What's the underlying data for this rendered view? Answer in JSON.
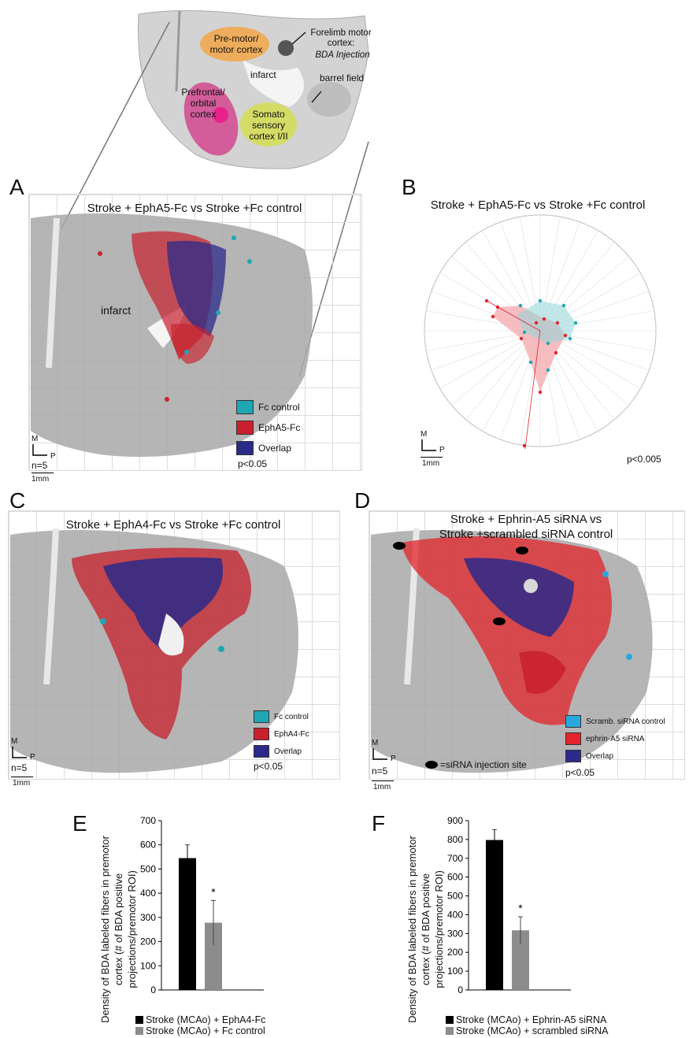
{
  "top_diagram": {
    "regions": {
      "premotor": "Pre-motor/ motor cortex",
      "forelimb": "Forelimb motor cortex:",
      "forelimb_injection": "BDA Injection",
      "infarct": "infarct",
      "barrel": "barrel field",
      "prefrontal": "Prefrontal/ orbital cortex",
      "somato": "Somato sensory cortex I/II"
    }
  },
  "panel_a": {
    "letter": "A",
    "title": "Stroke + EphA5-Fc vs Stroke +Fc control",
    "infarct_label": "infarct",
    "legend": [
      "Fc control",
      "EphA5-Fc",
      "Overlap"
    ],
    "pvalue": "p<0.05",
    "scale": {
      "m": "M",
      "p": "P",
      "n": "n=5",
      "bar": "1mm"
    }
  },
  "panel_b": {
    "letter": "B",
    "title": "Stroke + EphA5-Fc vs Stroke +Fc control",
    "pvalue": "p<0.005",
    "scale": {
      "m": "M",
      "p": "P",
      "bar": "1mm"
    }
  },
  "panel_c": {
    "letter": "C",
    "title": "Stroke + EphA4-Fc vs Stroke +Fc control",
    "legend": [
      "Fc control",
      "EphA4-Fc",
      "Overlap"
    ],
    "pvalue": "p<0.05",
    "scale": {
      "m": "M",
      "p": "P",
      "n": "n=5",
      "bar": "1mm"
    }
  },
  "panel_d": {
    "letter": "D",
    "title_line1": "Stroke + Ephrin-A5 siRNA vs",
    "title_line2": "Stroke +scrambled siRNA control",
    "legend": [
      "Scramb. siRNA control",
      "ephrin-A5 siRNA",
      "Overlap"
    ],
    "injection_label": "=siRNA injection site",
    "pvalue": "p<0.05",
    "scale": {
      "m": "M",
      "p": "P",
      "n": "n=5",
      "bar": "1mm"
    }
  },
  "colors": {
    "fc_control": "#1fa6b4",
    "ephrin_red": "#c8202c",
    "overlap": "#2b2a8a",
    "scramb": "#29a8e0",
    "sirna_red": "#e3242b",
    "bar_dark": "#000000",
    "bar_gray": "#8c8c8c"
  },
  "chart_data": [
    {
      "type": "bar",
      "letter": "E",
      "categories": [
        "Stroke (MCAo) + EphA4-Fc",
        "Stroke (MCAo) + Fc control"
      ],
      "values": [
        545,
        278
      ],
      "errors": [
        55,
        92
      ],
      "ylabel": "Density of BDA labeled fibers in premotor cortex (# of BDA positive projections/premotor ROI)",
      "ylim": [
        0,
        700
      ],
      "yticks": [
        "0",
        "100",
        "200",
        "300",
        "400",
        "500",
        "600",
        "700"
      ],
      "significance": "*"
    },
    {
      "type": "bar",
      "letter": "F",
      "categories": [
        "Stroke (MCAo) + Ephrin-A5 siRNA",
        "Stroke (MCAo) + scrambled siRNA"
      ],
      "values": [
        797,
        317
      ],
      "errors": [
        55,
        72
      ],
      "ylabel": "Density of BDA labeled fibers in premotor cortex (# of BDA positive projections/premotor ROI)",
      "ylim": [
        0,
        900
      ],
      "yticks": [
        "0",
        "100",
        "200",
        "300",
        "400",
        "500",
        "600",
        "700",
        "800",
        "900"
      ],
      "significance": "*"
    }
  ]
}
